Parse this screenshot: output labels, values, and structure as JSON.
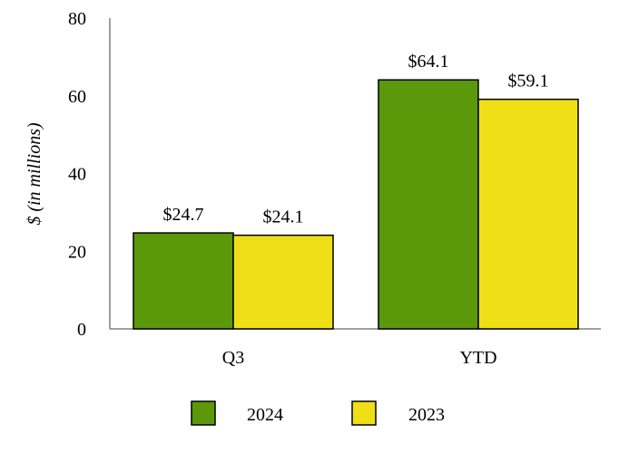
{
  "chart_data": {
    "type": "bar",
    "title": "",
    "xlabel": "",
    "ylabel": "$ (in millions)",
    "categories": [
      "Q3",
      "YTD"
    ],
    "series": [
      {
        "name": "2024",
        "values": [
          24.7,
          64.1
        ],
        "labels": [
          "$24.7",
          "$64.1"
        ],
        "color": "#5b990b"
      },
      {
        "name": "2023",
        "values": [
          24.1,
          59.1
        ],
        "labels": [
          "$24.1",
          "$59.1"
        ],
        "color": "#efdf17"
      }
    ],
    "ylim": [
      0,
      80
    ],
    "yticks": [
      "0",
      "20",
      "40",
      "60",
      "80"
    ],
    "grid": false,
    "legend": "bottom-center"
  }
}
